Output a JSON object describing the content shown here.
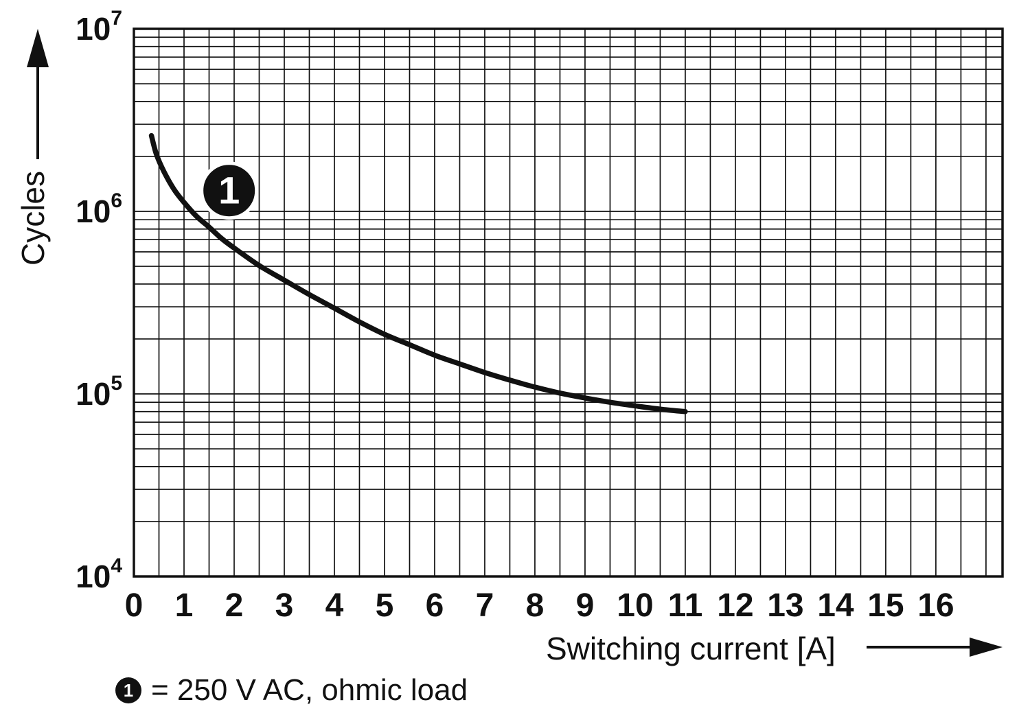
{
  "figure": {
    "y_axis_label": "Cycles",
    "x_axis_label": "Switching current [A]",
    "legend": {
      "marker": "1",
      "text": "= 250 V AC, ohmic load"
    }
  },
  "colors": {
    "ink": "#111111",
    "background": "#ffffff"
  },
  "chart_data": {
    "type": "line",
    "x_axis": {
      "label": "Switching current [A]",
      "scale": "linear",
      "min": 0,
      "max": 17.33,
      "grid_step": 0.5,
      "tick_labels": [
        0,
        1,
        2,
        3,
        4,
        5,
        6,
        7,
        8,
        9,
        10,
        11,
        12,
        13,
        14,
        15,
        16
      ]
    },
    "y_axis": {
      "label": "Cycles",
      "scale": "log",
      "min_exponent": 4,
      "max_exponent": 7,
      "tick_exponents": [
        4,
        5,
        6,
        7
      ]
    },
    "series": [
      {
        "name": "1",
        "description": "250 V AC, ohmic load",
        "points": [
          [
            0.35,
            2600000
          ],
          [
            0.45,
            2050000
          ],
          [
            0.6,
            1650000
          ],
          [
            0.8,
            1320000
          ],
          [
            1,
            1120000
          ],
          [
            1.25,
            940000
          ],
          [
            1.5,
            820000
          ],
          [
            1.75,
            710000
          ],
          [
            2,
            630000
          ],
          [
            2.5,
            505000
          ],
          [
            3,
            420000
          ],
          [
            3.5,
            350000
          ],
          [
            4,
            295000
          ],
          [
            4.5,
            248000
          ],
          [
            5,
            212000
          ],
          [
            5.5,
            186000
          ],
          [
            6,
            163000
          ],
          [
            6.5,
            146000
          ],
          [
            7,
            131000
          ],
          [
            7.5,
            119000
          ],
          [
            8,
            109000
          ],
          [
            8.5,
            101000
          ],
          [
            9,
            95000
          ],
          [
            9.5,
            90000
          ],
          [
            10,
            86000
          ],
          [
            10.5,
            82500
          ],
          [
            11,
            80000
          ]
        ]
      }
    ],
    "annotation": {
      "label": "1",
      "x": 1.9,
      "y": 1300000
    }
  }
}
